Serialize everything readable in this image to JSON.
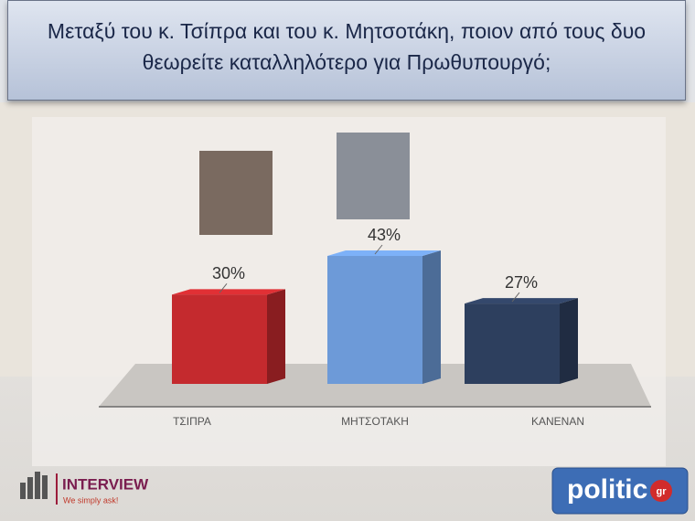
{
  "chart_data": {
    "type": "bar3d",
    "title": "Μεταξύ του κ. Τσίπρα και του κ. Μητσοτάκη, ποιον από τους δυο θεωρείτε καταλληλότερο για Πρωθυπουργό;",
    "categories": [
      "ΤΣΙΠΡΑ",
      "ΜΗΤΣΟΤΑΚΗ",
      "ΚΑΝΕΝΑΝ"
    ],
    "values": [
      30,
      43,
      27
    ],
    "value_labels": [
      "30%",
      "43%",
      "27%"
    ],
    "colors": [
      "#c42a2e",
      "#6d9ad8",
      "#2d3f5e"
    ]
  },
  "logos": {
    "left": {
      "name": "INTERVIEW",
      "tagline": "We simply ask!"
    },
    "right": {
      "name": "politic",
      "suffix": "gr"
    }
  }
}
